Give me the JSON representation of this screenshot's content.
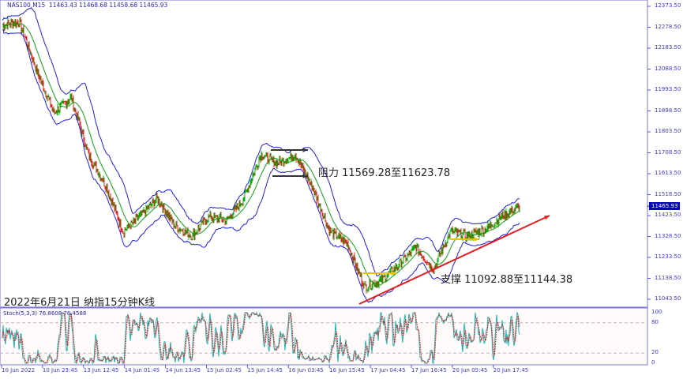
{
  "header": {
    "symbol": "NAS100,M15",
    "ohlc": "11463.43 11468.68 11458.68 11465.93"
  },
  "current_price": "11465.93",
  "annotations": {
    "resistance": "阻力 11569.28至11623.78",
    "support": "支撑 11092.88至11144.38",
    "caption": "2022年6月21日 纳指15分钟K线"
  },
  "stoch": {
    "label": "Stoch(5,3,3) 76.8608 76.4588",
    "levels": [
      "100",
      "80",
      "20",
      "0"
    ]
  },
  "chart_data": {
    "type": "candlestick",
    "price_ticks": [
      "12373.50",
      "12278.50",
      "12183.50",
      "12088.50",
      "11993.50",
      "11898.50",
      "11803.50",
      "11708.50",
      "11613.50",
      "11518.50",
      "11423.50",
      "11328.50",
      "11233.50",
      "11138.50",
      "11043.50"
    ],
    "time_ticks": [
      "10 Jun 2022",
      "10 Jun 23:45",
      "13 Jun 12:45",
      "14 Jun 01:45",
      "14 Jun 13:45",
      "15 Jun 02:45",
      "15 Jun 14:45",
      "16 Jun 03:45",
      "16 Jun 15:45",
      "17 Jun 04:45",
      "17 Jun 16:45",
      "20 Jun 05:45",
      "20 Jun 17:45"
    ],
    "approx_close_path": [
      12290,
      12300,
      12080,
      11890,
      11960,
      11700,
      11560,
      11350,
      11420,
      11500,
      11380,
      11330,
      11420,
      11400,
      11500,
      11700,
      11660,
      11700,
      11550,
      11350,
      11300,
      11100,
      11130,
      11200,
      11280,
      11180,
      11350,
      11330,
      11360,
      11420,
      11465
    ],
    "colors": {
      "bands": "#2020e0",
      "up": "#00b000",
      "down": "#e02020",
      "trend": "#e02020",
      "stoch_main": "#20b0b0",
      "stoch_signal": "#e02020"
    }
  }
}
